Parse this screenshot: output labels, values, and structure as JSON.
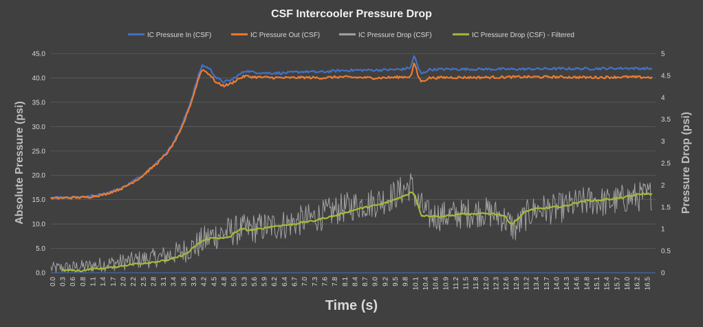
{
  "chart_data": {
    "type": "line",
    "title": "CSF Intercooler Pressure Drop",
    "xlabel": "Time (s)",
    "ylabel_left": "Absolute Pressure (psi)",
    "ylabel_right": "Pressure Drop (psi)",
    "ylim_left": [
      0,
      45
    ],
    "ylim_right": [
      0,
      5
    ],
    "y_ticks_left": [
      "0.0",
      "5.0",
      "10.0",
      "15.0",
      "20.0",
      "25.0",
      "30.0",
      "35.0",
      "40.0",
      "45.0"
    ],
    "y_ticks_right": [
      "0",
      "0.5",
      "1",
      "1.5",
      "2",
      "2.5",
      "3",
      "3.5",
      "4",
      "4.5",
      "5"
    ],
    "x_ticks": [
      "0.0",
      "0.3",
      "0.6",
      "0.8",
      "1.1",
      "1.4",
      "1.7",
      "2.0",
      "2.2",
      "2.5",
      "2.8",
      "3.1",
      "3.4",
      "3.6",
      "3.9",
      "4.2",
      "4.5",
      "4.8",
      "5.0",
      "5.3",
      "5.6",
      "5.9",
      "6.2",
      "6.4",
      "6.7",
      "7.0",
      "7.3",
      "7.6",
      "7.8",
      "8.1",
      "8.4",
      "8.7",
      "9.0",
      "9.2",
      "9.5",
      "9.8",
      "10.1",
      "10.4",
      "10.6",
      "10.9",
      "11.2",
      "11.5",
      "11.8",
      "12.0",
      "12.3",
      "12.6",
      "12.9",
      "13.2",
      "13.4",
      "13.7",
      "14.0",
      "14.3",
      "14.6",
      "14.8",
      "15.1",
      "15.4",
      "15.7",
      "16.0",
      "16.2",
      "16.5"
    ],
    "xlim": [
      0,
      16.8
    ],
    "legend_position": "top",
    "grid": "horizontal",
    "series": [
      {
        "name": "IC Pressure In (CSF)",
        "axis": "left",
        "color": "#4472c4",
        "x": [
          0,
          0.5,
          1.0,
          1.5,
          2.0,
          2.5,
          3.0,
          3.3,
          3.6,
          3.9,
          4.1,
          4.2,
          4.4,
          4.6,
          4.8,
          5.0,
          5.2,
          5.4,
          5.6,
          6.0,
          6.5,
          7.0,
          7.5,
          8.0,
          8.5,
          9.0,
          9.5,
          9.8,
          10.0,
          10.1,
          10.2,
          10.3,
          10.5,
          11.0,
          12.0,
          13.0,
          14.0,
          15.0,
          16.0,
          16.7
        ],
        "values": [
          15.4,
          15.5,
          15.6,
          16.2,
          17.5,
          19.8,
          23.0,
          25.5,
          29.5,
          35.5,
          40.5,
          42.6,
          42.0,
          40.0,
          39.2,
          39.5,
          40.5,
          41.5,
          41.2,
          41.0,
          41.0,
          41.3,
          41.2,
          41.5,
          41.6,
          41.6,
          41.7,
          41.8,
          42.2,
          44.8,
          42.0,
          40.8,
          41.7,
          41.8,
          41.8,
          41.8,
          41.9,
          41.9,
          42.0,
          41.9
        ]
      },
      {
        "name": "IC Pressure Out (CSF)",
        "axis": "left",
        "color": "#ed7d31",
        "x": [
          0,
          0.5,
          1.0,
          1.5,
          2.0,
          2.5,
          3.0,
          3.3,
          3.6,
          3.9,
          4.1,
          4.2,
          4.4,
          4.6,
          4.8,
          5.0,
          5.2,
          5.4,
          5.6,
          6.0,
          6.5,
          7.0,
          7.5,
          8.0,
          8.5,
          9.0,
          9.5,
          9.8,
          10.0,
          10.1,
          10.2,
          10.3,
          10.5,
          11.0,
          12.0,
          13.0,
          14.0,
          15.0,
          16.0,
          16.7
        ],
        "values": [
          15.3,
          15.4,
          15.5,
          16.1,
          17.4,
          19.6,
          22.8,
          25.2,
          29.0,
          35.0,
          39.8,
          41.8,
          40.8,
          39.0,
          38.4,
          38.8,
          39.8,
          40.4,
          40.2,
          40.1,
          40.0,
          40.1,
          40.0,
          40.2,
          40.1,
          40.0,
          40.1,
          40.2,
          40.3,
          43.2,
          40.4,
          39.2,
          40.0,
          40.1,
          40.1,
          40.2,
          40.2,
          40.1,
          40.2,
          40.1
        ]
      },
      {
        "name": "IC Pressure Drop (CSF)",
        "axis": "right",
        "color": "#a5a5a5",
        "x": [
          0,
          0.5,
          1.0,
          1.5,
          2.0,
          2.5,
          3.0,
          3.5,
          4.0,
          4.3,
          4.5,
          5.0,
          5.5,
          6.0,
          6.5,
          7.0,
          7.5,
          8.0,
          8.5,
          9.0,
          9.5,
          9.8,
          10.0,
          10.2,
          10.5,
          11.0,
          11.5,
          12.0,
          12.5,
          12.9,
          13.2,
          13.5,
          14.0,
          14.5,
          15.0,
          15.5,
          16.0,
          16.5,
          16.7
        ],
        "values": [
          0.1,
          0.12,
          0.15,
          0.2,
          0.25,
          0.3,
          0.35,
          0.45,
          0.6,
          0.75,
          0.85,
          0.95,
          1.0,
          1.05,
          1.1,
          1.2,
          1.3,
          1.45,
          1.55,
          1.6,
          1.75,
          1.9,
          2.0,
          1.6,
          1.3,
          1.3,
          1.35,
          1.4,
          1.3,
          1.0,
          1.3,
          1.45,
          1.45,
          1.55,
          1.65,
          1.6,
          1.7,
          1.75,
          1.78
        ],
        "noise_amplitude": 0.35
      },
      {
        "name": "IC Pressure Drop (CSF) - Filtered",
        "axis": "right",
        "color": "#a9b93a",
        "x": [
          0.3,
          0.5,
          0.8,
          1.1,
          1.4,
          1.7,
          2.0,
          2.3,
          2.6,
          2.9,
          3.2,
          3.5,
          3.8,
          4.0,
          4.2,
          4.4,
          4.6,
          4.8,
          5.0,
          5.1,
          5.3,
          5.5,
          5.8,
          6.1,
          6.4,
          6.7,
          7.0,
          7.3,
          7.6,
          7.9,
          8.2,
          8.5,
          8.8,
          9.1,
          9.4,
          9.7,
          9.9,
          10.0,
          10.1,
          10.2,
          10.3,
          10.5,
          10.8,
          11.1,
          11.4,
          11.7,
          12.0,
          12.3,
          12.6,
          12.8,
          13.0,
          13.2,
          13.4,
          13.7,
          14.0,
          14.3,
          14.6,
          14.9,
          15.2,
          15.5,
          15.8,
          16.1,
          16.4,
          16.7
        ],
        "values": [
          0.05,
          0.06,
          0.04,
          0.08,
          0.1,
          0.12,
          0.16,
          0.2,
          0.22,
          0.25,
          0.28,
          0.35,
          0.45,
          0.6,
          0.72,
          0.78,
          0.8,
          0.78,
          0.83,
          0.92,
          1.0,
          0.97,
          1.0,
          1.05,
          1.08,
          1.1,
          1.15,
          1.18,
          1.25,
          1.3,
          1.38,
          1.45,
          1.5,
          1.55,
          1.62,
          1.72,
          1.78,
          1.85,
          1.8,
          1.55,
          1.3,
          1.3,
          1.28,
          1.3,
          1.35,
          1.33,
          1.35,
          1.35,
          1.3,
          1.1,
          1.25,
          1.4,
          1.45,
          1.47,
          1.5,
          1.52,
          1.6,
          1.65,
          1.65,
          1.68,
          1.7,
          1.75,
          1.8,
          1.8
        ]
      }
    ]
  }
}
